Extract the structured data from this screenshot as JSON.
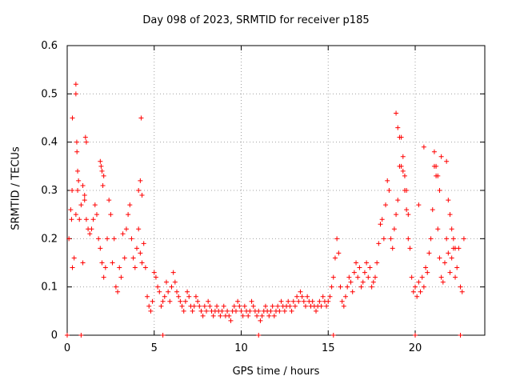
{
  "chart_data": {
    "type": "scatter",
    "title": "Day 098 of 2023, SRMTID for receiver p185",
    "xlabel": "GPS time / hours",
    "ylabel": "SRMTID / TECUs",
    "xlim": [
      0,
      24
    ],
    "ylim": [
      0,
      0.6
    ],
    "xticks": [
      0,
      5,
      10,
      15,
      20
    ],
    "xtick_labels": [
      "0",
      "5",
      "10",
      "15",
      "20"
    ],
    "yticks": [
      0,
      0.1,
      0.2,
      0.3,
      0.4,
      0.5,
      0.6
    ],
    "ytick_labels": [
      "0",
      "0.1",
      "0.2",
      "0.3",
      "0.4",
      "0.5",
      "0.6"
    ],
    "grid": true,
    "marker": "+",
    "marker_color": "#ff0000",
    "series": [
      {
        "name": "SRMTID",
        "x": [
          0.1,
          0.2,
          0.3,
          0.4,
          0.5,
          0.6,
          0.7,
          0.8,
          0.9,
          1.0,
          1.1,
          1.2,
          1.3,
          1.4,
          1.5,
          1.6,
          1.7,
          1.8,
          1.9,
          2.0,
          2.1,
          2.2,
          2.3,
          2.4,
          2.5,
          2.6,
          2.7,
          2.8,
          2.9,
          3.0,
          3.1,
          3.2,
          3.3,
          3.4,
          3.5,
          3.6,
          3.7,
          3.8,
          3.9,
          4.0,
          4.1,
          4.2,
          4.3,
          4.4,
          4.5,
          4.6,
          4.7,
          4.8,
          4.9,
          5.0,
          5.1,
          5.2,
          5.3,
          5.4,
          5.5,
          5.6,
          5.7,
          5.8,
          5.9,
          6.0,
          6.1,
          6.2,
          6.3,
          6.4,
          6.5,
          6.6,
          6.7,
          6.8,
          6.9,
          7.0,
          7.1,
          7.2,
          7.3,
          7.4,
          7.5,
          7.6,
          7.7,
          7.8,
          7.9,
          8.0,
          8.1,
          8.2,
          8.3,
          8.4,
          8.5,
          8.6,
          8.7,
          8.8,
          8.9,
          9.0,
          9.1,
          9.2,
          9.3,
          9.4,
          9.5,
          9.6,
          9.7,
          9.8,
          9.9,
          10.0,
          10.1,
          10.2,
          10.3,
          10.4,
          10.5,
          10.6,
          10.7,
          10.8,
          10.9,
          11.0,
          11.1,
          11.2,
          11.3,
          11.4,
          11.5,
          11.6,
          11.7,
          11.8,
          11.9,
          12.0,
          12.1,
          12.2,
          12.3,
          12.4,
          12.5,
          12.6,
          12.7,
          12.8,
          12.9,
          13.0,
          13.1,
          13.2,
          13.3,
          13.4,
          13.5,
          13.6,
          13.7,
          13.8,
          13.9,
          14.0,
          14.1,
          14.2,
          14.3,
          14.4,
          14.5,
          14.6,
          14.7,
          14.8,
          14.9,
          15.0,
          15.1,
          15.2,
          15.3,
          15.4,
          15.5,
          15.6,
          15.7,
          15.8,
          15.9,
          16.0,
          16.1,
          16.2,
          16.3,
          16.4,
          16.5,
          16.6,
          16.7,
          16.8,
          16.9,
          17.0,
          17.1,
          17.2,
          17.3,
          17.4,
          17.5,
          17.6,
          17.7,
          17.8,
          17.9,
          18.0,
          18.1,
          18.2,
          18.3,
          18.4,
          18.5,
          18.6,
          18.7,
          18.8,
          18.9,
          19.0,
          19.1,
          19.2,
          19.3,
          19.4,
          19.5,
          19.6,
          19.7,
          19.8,
          19.9,
          20.0,
          20.1,
          20.2,
          20.3,
          20.4,
          20.5,
          20.6,
          20.7,
          20.8,
          20.9,
          21.0,
          21.1,
          21.2,
          21.3,
          21.4,
          21.5,
          21.6,
          21.7,
          21.8,
          21.9,
          22.0,
          22.1,
          22.2,
          22.3,
          22.4,
          22.5,
          22.6,
          22.7,
          22.8,
          0.25,
          0.28,
          0.3,
          0.5,
          0.5,
          0.55,
          0.56,
          0.6,
          0.65,
          0.9,
          1.0,
          1.05,
          1.1,
          1.9,
          1.95,
          2.0,
          2.05,
          2.1,
          4.1,
          4.2,
          4.3,
          4.25,
          18.9,
          19.0,
          19.1,
          19.2,
          19.3,
          19.4,
          19.5,
          19.6,
          20.2,
          20.5,
          21.1,
          21.2,
          21.3,
          21.4,
          21.5,
          21.8,
          21.9,
          22.0,
          22.1,
          22.2,
          22.3,
          0.0,
          0.8,
          5.5,
          11.0,
          15.3,
          20.0,
          22.6
        ],
        "y": [
          0.2,
          0.26,
          0.14,
          0.16,
          0.25,
          0.34,
          0.24,
          0.27,
          0.15,
          0.29,
          0.24,
          0.22,
          0.21,
          0.22,
          0.24,
          0.27,
          0.25,
          0.2,
          0.18,
          0.15,
          0.12,
          0.14,
          0.2,
          0.28,
          0.25,
          0.15,
          0.2,
          0.1,
          0.09,
          0.14,
          0.12,
          0.21,
          0.16,
          0.22,
          0.25,
          0.27,
          0.2,
          0.16,
          0.14,
          0.18,
          0.22,
          0.17,
          0.15,
          0.19,
          0.14,
          0.08,
          0.06,
          0.05,
          0.07,
          0.13,
          0.12,
          0.1,
          0.09,
          0.06,
          0.07,
          0.08,
          0.11,
          0.09,
          0.07,
          0.1,
          0.13,
          0.11,
          0.09,
          0.08,
          0.07,
          0.06,
          0.05,
          0.07,
          0.09,
          0.08,
          0.06,
          0.05,
          0.06,
          0.08,
          0.07,
          0.06,
          0.05,
          0.04,
          0.06,
          0.05,
          0.07,
          0.06,
          0.05,
          0.04,
          0.05,
          0.06,
          0.05,
          0.04,
          0.05,
          0.06,
          0.04,
          0.05,
          0.04,
          0.03,
          0.05,
          0.06,
          0.05,
          0.07,
          0.06,
          0.05,
          0.04,
          0.06,
          0.05,
          0.04,
          0.05,
          0.07,
          0.06,
          0.05,
          0.04,
          0.05,
          0.03,
          0.04,
          0.05,
          0.06,
          0.05,
          0.04,
          0.05,
          0.06,
          0.04,
          0.05,
          0.06,
          0.05,
          0.07,
          0.06,
          0.05,
          0.06,
          0.07,
          0.06,
          0.05,
          0.07,
          0.06,
          0.08,
          0.07,
          0.09,
          0.08,
          0.07,
          0.06,
          0.08,
          0.07,
          0.06,
          0.07,
          0.06,
          0.05,
          0.06,
          0.07,
          0.06,
          0.08,
          0.07,
          0.06,
          0.07,
          0.08,
          0.1,
          0.12,
          0.16,
          0.2,
          0.17,
          0.1,
          0.07,
          0.06,
          0.08,
          0.1,
          0.12,
          0.11,
          0.09,
          0.13,
          0.15,
          0.12,
          0.14,
          0.1,
          0.11,
          0.13,
          0.15,
          0.12,
          0.14,
          0.1,
          0.11,
          0.12,
          0.15,
          0.19,
          0.23,
          0.24,
          0.2,
          0.27,
          0.32,
          0.3,
          0.2,
          0.18,
          0.22,
          0.25,
          0.28,
          0.35,
          0.41,
          0.37,
          0.3,
          0.26,
          0.2,
          0.18,
          0.12,
          0.09,
          0.1,
          0.08,
          0.11,
          0.09,
          0.12,
          0.1,
          0.14,
          0.13,
          0.17,
          0.2,
          0.26,
          0.35,
          0.33,
          0.22,
          0.16,
          0.12,
          0.11,
          0.15,
          0.2,
          0.17,
          0.13,
          0.16,
          0.18,
          0.12,
          0.14,
          0.18,
          0.1,
          0.09,
          0.2,
          0.24,
          0.3,
          0.45,
          0.52,
          0.5,
          0.4,
          0.38,
          0.3,
          0.32,
          0.31,
          0.28,
          0.41,
          0.4,
          0.36,
          0.35,
          0.34,
          0.31,
          0.33,
          0.3,
          0.32,
          0.29,
          0.45,
          0.46,
          0.43,
          0.41,
          0.35,
          0.34,
          0.33,
          0.3,
          0.25,
          0.27,
          0.39,
          0.38,
          0.35,
          0.33,
          0.3,
          0.37,
          0.36,
          0.28,
          0.25,
          0.22,
          0.2,
          0.18,
          0,
          0,
          0,
          0,
          0,
          0,
          0
        ]
      }
    ]
  }
}
